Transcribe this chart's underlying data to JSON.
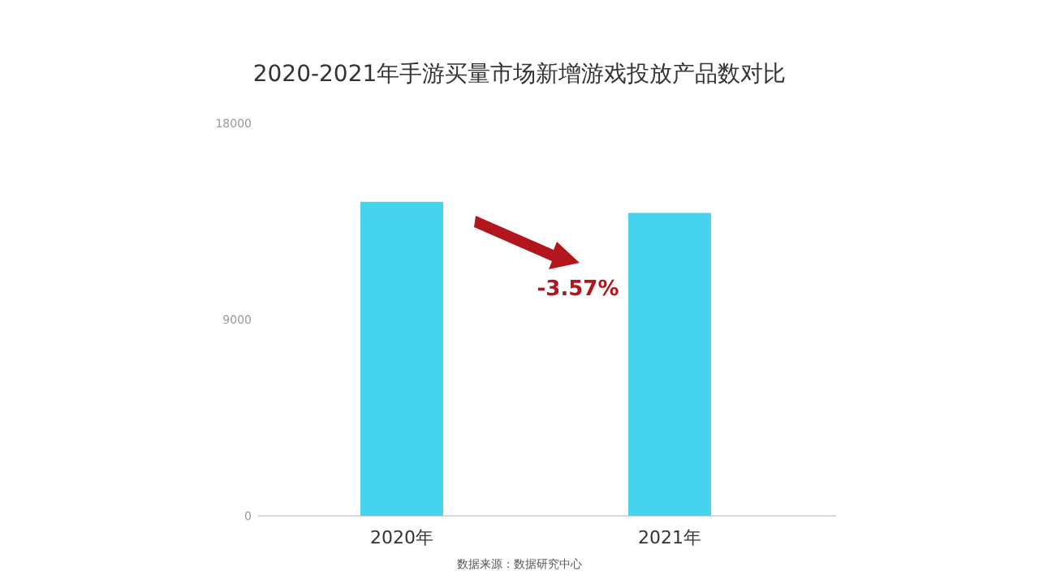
{
  "chart_data": {
    "type": "bar",
    "title": "2020-2021年手游买量市场新增游戏投放产品数对比",
    "categories": [
      "2020年",
      "2021年"
    ],
    "values": [
      14400,
      13890
    ],
    "color": "#45d3ee",
    "ylim": [
      0,
      18000
    ],
    "yticks": [
      0,
      9000,
      18000
    ],
    "grid": false,
    "annotations": [
      "-3.57%",
      "数据来源：数据研究中心"
    ]
  }
}
